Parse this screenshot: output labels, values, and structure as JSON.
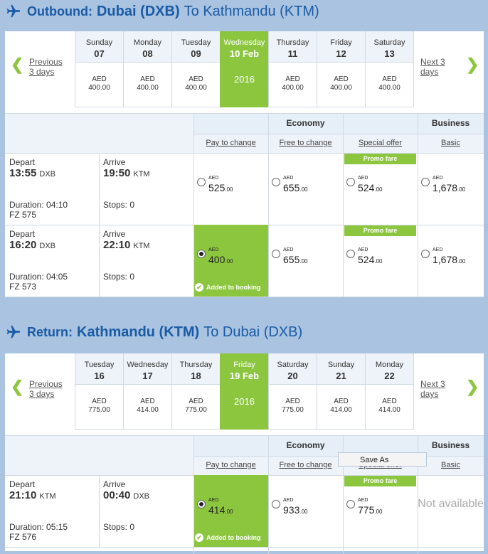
{
  "outbound": {
    "prefix": "Outbound:",
    "origin": "Dubai (DXB)",
    "dest": "To Kathmandu (KTM)",
    "prev_label": "Previous 3 days",
    "next_label": "Next 3 days",
    "days": [
      {
        "name": "Sunday",
        "num": "07",
        "cur": "AED",
        "price": "400.00"
      },
      {
        "name": "Monday",
        "num": "08",
        "cur": "AED",
        "price": "400.00"
      },
      {
        "name": "Tuesday",
        "num": "09",
        "cur": "AED",
        "price": "400.00"
      },
      {
        "name": "Wednesday",
        "num": "10 Feb",
        "year": "2016",
        "selected": true
      },
      {
        "name": "Thursday",
        "num": "11",
        "cur": "AED",
        "price": "400.00"
      },
      {
        "name": "Friday",
        "num": "12",
        "cur": "AED",
        "price": "400.00"
      },
      {
        "name": "Saturday",
        "num": "13",
        "cur": "AED",
        "price": "400.00"
      }
    ],
    "economy": "Economy",
    "business": "Business",
    "subs": [
      "Pay to change",
      "Free to change",
      "Special offer",
      "Basic"
    ],
    "flights": [
      {
        "depart_lbl": "Depart",
        "depart_time": "13:55",
        "depart_code": "DXB",
        "arrive_lbl": "Arrive",
        "arrive_time": "19:50",
        "arrive_code": "KTM",
        "duration": "Duration: 04:10",
        "flight_no": "FZ 575",
        "stops": "Stops: 0",
        "fares": [
          {
            "cur": "AED",
            "int": "525",
            "dec": ".00"
          },
          {
            "cur": "AED",
            "int": "655",
            "dec": ".00"
          },
          {
            "cur": "AED",
            "int": "524",
            "dec": ".00",
            "promo": "Promo fare"
          },
          {
            "cur": "AED",
            "int": "1,678",
            "dec": ".00"
          }
        ]
      },
      {
        "depart_lbl": "Depart",
        "depart_time": "16:20",
        "depart_code": "DXB",
        "arrive_lbl": "Arrive",
        "arrive_time": "22:10",
        "arrive_code": "KTM",
        "duration": "Duration: 04:05",
        "flight_no": "FZ 573",
        "stops": "Stops: 0",
        "fares": [
          {
            "cur": "AED",
            "int": "400",
            "dec": ".00",
            "selected": true,
            "added": "Added to booking"
          },
          {
            "cur": "AED",
            "int": "655",
            "dec": ".00"
          },
          {
            "cur": "AED",
            "int": "524",
            "dec": ".00",
            "promo": "Promo fare"
          },
          {
            "cur": "AED",
            "int": "1,678",
            "dec": ".00"
          }
        ]
      }
    ]
  },
  "return": {
    "prefix": "Return:",
    "origin": "Kathmandu (KTM)",
    "dest": "To Dubai (DXB)",
    "prev_label": "Previous 3 days",
    "next_label": "Next 3 days",
    "days": [
      {
        "name": "Tuesday",
        "num": "16",
        "cur": "AED",
        "price": "775.00"
      },
      {
        "name": "Wednesday",
        "num": "17",
        "cur": "AED",
        "price": "414.00"
      },
      {
        "name": "Thursday",
        "num": "18",
        "cur": "AED",
        "price": "775.00"
      },
      {
        "name": "Friday",
        "num": "19 Feb",
        "year": "2016",
        "selected": true
      },
      {
        "name": "Saturday",
        "num": "20",
        "cur": "AED",
        "price": "775.00"
      },
      {
        "name": "Sunday",
        "num": "21",
        "cur": "AED",
        "price": "414.00"
      },
      {
        "name": "Monday",
        "num": "22",
        "cur": "AED",
        "price": "414.00"
      }
    ],
    "economy": "Economy",
    "business": "Business",
    "subs": [
      "Pay to change",
      "Free to change",
      "Special offer",
      "Basic"
    ],
    "flights": [
      {
        "depart_lbl": "Depart",
        "depart_time": "21:10",
        "depart_code": "KTM",
        "arrive_lbl": "Arrive",
        "arrive_time": "00:40",
        "arrive_code": "DXB",
        "duration": "Duration: 05:15",
        "flight_no": "FZ 576",
        "stops": "Stops: 0",
        "fares": [
          {
            "cur": "AED",
            "int": "414",
            "dec": ".00",
            "selected": true,
            "added": "Added to booking"
          },
          {
            "cur": "AED",
            "int": "933",
            "dec": ".00"
          },
          {
            "cur": "AED",
            "int": "775",
            "dec": ".00",
            "promo": "Promo fare"
          },
          {
            "na": "Not available"
          }
        ]
      }
    ]
  },
  "context_menu": "Save As",
  "colors": {
    "accent": "#8cc63f",
    "brand": "#1a5ba5",
    "background": "#a9c3e0"
  }
}
